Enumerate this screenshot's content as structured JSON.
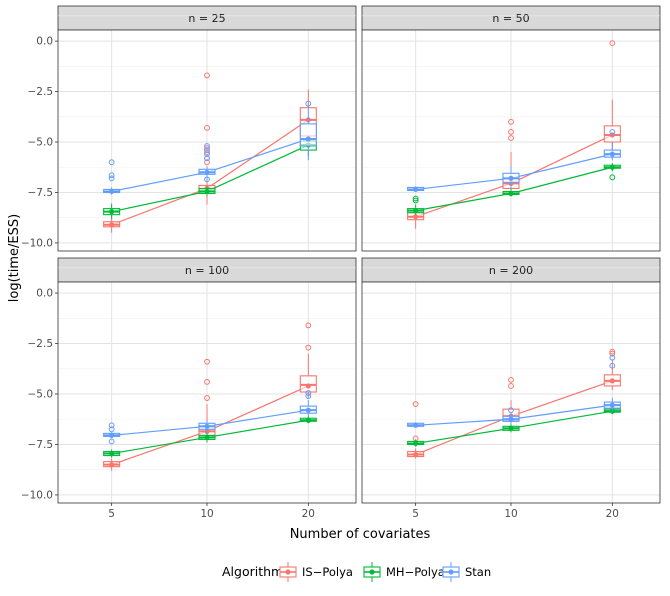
{
  "chart_data": {
    "type": "box",
    "xlabel": "Number of covariates",
    "ylabel": "log(time/ESS)",
    "categories": [
      "5",
      "10",
      "20"
    ],
    "ylim": [
      -10,
      0.5
    ],
    "yticks": [
      0.0,
      -2.5,
      -5.0,
      -7.5,
      -10.0
    ],
    "ytick_labels": [
      "0.0",
      "−2.5",
      "−5.0",
      "−7.5",
      "−10.0"
    ],
    "legend": {
      "title": "Algorithm",
      "position": "bottom",
      "entries": [
        "IS−Polya",
        "MH−Polya",
        "Stan"
      ]
    },
    "series_colors": {
      "IS-Polya": "#F8766D",
      "MH-Polya": "#00BA38",
      "Stan": "#619CFF"
    },
    "panels": [
      {
        "title": "n = 25",
        "series": [
          {
            "name": "IS-Polya",
            "boxes": [
              {
                "x": "5",
                "q1": -9.2,
                "median": -9.1,
                "q3": -8.95,
                "whisker_low": -9.5,
                "whisker_high": -8.7,
                "mean": -9.1,
                "outliers": []
              },
              {
                "x": "10",
                "q1": -7.45,
                "median": -7.35,
                "q3": -7.15,
                "whisker_low": -8.1,
                "whisker_high": -6.75,
                "mean": -7.3,
                "outliers": [
                  -5.3,
                  -5.5,
                  -5.8,
                  -6.0,
                  -4.3,
                  -1.7
                ]
              },
              {
                "x": "20",
                "q1": -4.7,
                "median": -3.9,
                "q3": -3.3,
                "whisker_low": -5.1,
                "whisker_high": -2.4,
                "mean": -3.9,
                "outliers": []
              }
            ]
          },
          {
            "name": "MH-Polya",
            "boxes": [
              {
                "x": "5",
                "q1": -8.6,
                "median": -8.45,
                "q3": -8.3,
                "whisker_low": -8.8,
                "whisker_high": -8.05,
                "mean": -8.45,
                "outliers": []
              },
              {
                "x": "10",
                "q1": -7.55,
                "median": -7.45,
                "q3": -7.3,
                "whisker_low": -7.7,
                "whisker_high": -7.2,
                "mean": -7.45,
                "outliers": []
              },
              {
                "x": "20",
                "q1": -5.4,
                "median": -5.15,
                "q3": -4.95,
                "whisker_low": -5.7,
                "whisker_high": -4.8,
                "mean": -5.15,
                "outliers": []
              }
            ]
          },
          {
            "name": "Stan",
            "boxes": [
              {
                "x": "5",
                "q1": -7.5,
                "median": -7.45,
                "q3": -7.35,
                "whisker_low": -7.6,
                "whisker_high": -7.25,
                "mean": -7.45,
                "outliers": [
                  -6.0,
                  -6.65,
                  -6.8
                ]
              },
              {
                "x": "10",
                "q1": -6.6,
                "median": -6.5,
                "q3": -6.35,
                "whisker_low": -6.9,
                "whisker_high": -6.2,
                "mean": -6.5,
                "outliers": [
                  -5.2,
                  -5.4,
                  -5.6,
                  -5.8,
                  -6.85
                ]
              },
              {
                "x": "20",
                "q1": -5.2,
                "median": -4.85,
                "q3": -4.1,
                "whisker_low": -5.9,
                "whisker_high": -3.2,
                "mean": -4.85,
                "outliers": [
                  -3.1
                ]
              }
            ]
          }
        ]
      },
      {
        "title": "n = 50",
        "series": [
          {
            "name": "IS-Polya",
            "boxes": [
              {
                "x": "5",
                "q1": -8.85,
                "median": -8.7,
                "q3": -8.5,
                "whisker_low": -9.3,
                "whisker_high": -8.3,
                "mean": -8.7,
                "outliers": []
              },
              {
                "x": "10",
                "q1": -7.3,
                "median": -7.05,
                "q3": -6.8,
                "whisker_low": -7.7,
                "whisker_high": -5.5,
                "mean": -7.05,
                "outliers": [
                  -4.0,
                  -4.5,
                  -4.8
                ]
              },
              {
                "x": "20",
                "q1": -5.0,
                "median": -4.65,
                "q3": -4.2,
                "whisker_low": -5.5,
                "whisker_high": -2.9,
                "mean": -4.65,
                "outliers": [
                  -0.1
                ]
              }
            ]
          },
          {
            "name": "MH-Polya",
            "boxes": [
              {
                "x": "5",
                "q1": -8.5,
                "median": -8.4,
                "q3": -8.3,
                "whisker_low": -8.6,
                "whisker_high": -8.1,
                "mean": -8.4,
                "outliers": [
                  -7.8,
                  -7.9
                ]
              },
              {
                "x": "10",
                "q1": -7.6,
                "median": -7.55,
                "q3": -7.45,
                "whisker_low": -7.7,
                "whisker_high": -7.3,
                "mean": -7.55,
                "outliers": []
              },
              {
                "x": "20",
                "q1": -6.3,
                "median": -6.25,
                "q3": -6.15,
                "whisker_low": -6.45,
                "whisker_high": -6.05,
                "mean": -6.25,
                "outliers": [
                  -6.75
                ]
              }
            ]
          },
          {
            "name": "Stan",
            "boxes": [
              {
                "x": "5",
                "q1": -7.4,
                "median": -7.35,
                "q3": -7.25,
                "whisker_low": -7.45,
                "whisker_high": -7.2,
                "mean": -7.35,
                "outliers": []
              },
              {
                "x": "10",
                "q1": -7.0,
                "median": -6.8,
                "q3": -6.55,
                "whisker_low": -7.3,
                "whisker_high": -6.2,
                "mean": -6.8,
                "outliers": []
              },
              {
                "x": "20",
                "q1": -5.75,
                "median": -5.6,
                "q3": -5.4,
                "whisker_low": -5.9,
                "whisker_high": -5.0,
                "mean": -5.6,
                "outliers": [
                  -4.5
                ]
              }
            ]
          }
        ]
      },
      {
        "title": "n = 100",
        "series": [
          {
            "name": "IS-Polya",
            "boxes": [
              {
                "x": "5",
                "q1": -8.6,
                "median": -8.5,
                "q3": -8.35,
                "whisker_low": -8.8,
                "whisker_high": -8.2,
                "mean": -8.5,
                "outliers": []
              },
              {
                "x": "10",
                "q1": -7.05,
                "median": -6.85,
                "q3": -6.6,
                "whisker_low": -7.3,
                "whisker_high": -5.5,
                "mean": -6.85,
                "outliers": [
                  -5.2,
                  -4.4,
                  -3.4
                ]
              },
              {
                "x": "20",
                "q1": -4.9,
                "median": -4.55,
                "q3": -4.1,
                "whisker_low": -5.2,
                "whisker_high": -3.0,
                "mean": -4.6,
                "outliers": [
                  -2.7,
                  -1.6
                ]
              }
            ]
          },
          {
            "name": "MH-Polya",
            "boxes": [
              {
                "x": "5",
                "q1": -8.05,
                "median": -7.95,
                "q3": -7.85,
                "whisker_low": -8.15,
                "whisker_high": -7.75,
                "mean": -7.95,
                "outliers": []
              },
              {
                "x": "10",
                "q1": -7.25,
                "median": -7.15,
                "q3": -7.05,
                "whisker_low": -7.4,
                "whisker_high": -6.95,
                "mean": -7.15,
                "outliers": []
              },
              {
                "x": "20",
                "q1": -6.35,
                "median": -6.3,
                "q3": -6.2,
                "whisker_low": -6.45,
                "whisker_high": -6.1,
                "mean": -6.3,
                "outliers": []
              }
            ]
          },
          {
            "name": "Stan",
            "boxes": [
              {
                "x": "5",
                "q1": -7.1,
                "median": -7.05,
                "q3": -6.95,
                "whisker_low": -7.15,
                "whisker_high": -6.9,
                "mean": -7.05,
                "outliers": [
                  -6.55,
                  -6.75,
                  -7.35
                ]
              },
              {
                "x": "10",
                "q1": -6.75,
                "median": -6.6,
                "q3": -6.45,
                "whisker_low": -6.95,
                "whisker_high": -6.3,
                "mean": -6.6,
                "outliers": []
              },
              {
                "x": "20",
                "q1": -5.95,
                "median": -5.8,
                "q3": -5.6,
                "whisker_low": -6.1,
                "whisker_high": -5.3,
                "mean": -5.8,
                "outliers": [
                  -4.95,
                  -5.1
                ]
              }
            ]
          }
        ]
      },
      {
        "title": "n = 200",
        "series": [
          {
            "name": "IS-Polya",
            "boxes": [
              {
                "x": "5",
                "q1": -8.1,
                "median": -8.0,
                "q3": -7.85,
                "whisker_low": -8.2,
                "whisker_high": -7.7,
                "mean": -8.0,
                "outliers": [
                  -5.5,
                  -7.2
                ]
              },
              {
                "x": "10",
                "q1": -6.35,
                "median": -6.1,
                "q3": -5.75,
                "whisker_low": -6.7,
                "whisker_high": -5.3,
                "mean": -6.1,
                "outliers": [
                  -4.3,
                  -4.6
                ]
              },
              {
                "x": "20",
                "q1": -4.6,
                "median": -4.35,
                "q3": -4.05,
                "whisker_low": -4.8,
                "whisker_high": -3.3,
                "mean": -4.35,
                "outliers": [
                  -2.9,
                  -3.0
                ]
              }
            ]
          },
          {
            "name": "MH-Polya",
            "boxes": [
              {
                "x": "5",
                "q1": -7.5,
                "median": -7.45,
                "q3": -7.35,
                "whisker_low": -7.6,
                "whisker_high": -7.25,
                "mean": -7.45,
                "outliers": []
              },
              {
                "x": "10",
                "q1": -6.8,
                "median": -6.7,
                "q3": -6.6,
                "whisker_low": -6.9,
                "whisker_high": -6.5,
                "mean": -6.7,
                "outliers": []
              },
              {
                "x": "20",
                "q1": -5.9,
                "median": -5.85,
                "q3": -5.75,
                "whisker_low": -6.0,
                "whisker_high": -5.65,
                "mean": -5.85,
                "outliers": []
              }
            ]
          },
          {
            "name": "Stan",
            "boxes": [
              {
                "x": "5",
                "q1": -6.6,
                "median": -6.55,
                "q3": -6.45,
                "whisker_low": -6.65,
                "whisker_high": -6.4,
                "mean": -6.55,
                "outliers": []
              },
              {
                "x": "10",
                "q1": -6.35,
                "median": -6.25,
                "q3": -6.1,
                "whisker_low": -6.5,
                "whisker_high": -5.9,
                "mean": -6.25,
                "outliers": [
                  -5.8
                ]
              },
              {
                "x": "20",
                "q1": -5.7,
                "median": -5.55,
                "q3": -5.4,
                "whisker_low": -5.85,
                "whisker_high": -5.2,
                "mean": -5.55,
                "outliers": [
                  -3.2,
                  -3.6
                ]
              }
            ]
          }
        ]
      }
    ]
  }
}
